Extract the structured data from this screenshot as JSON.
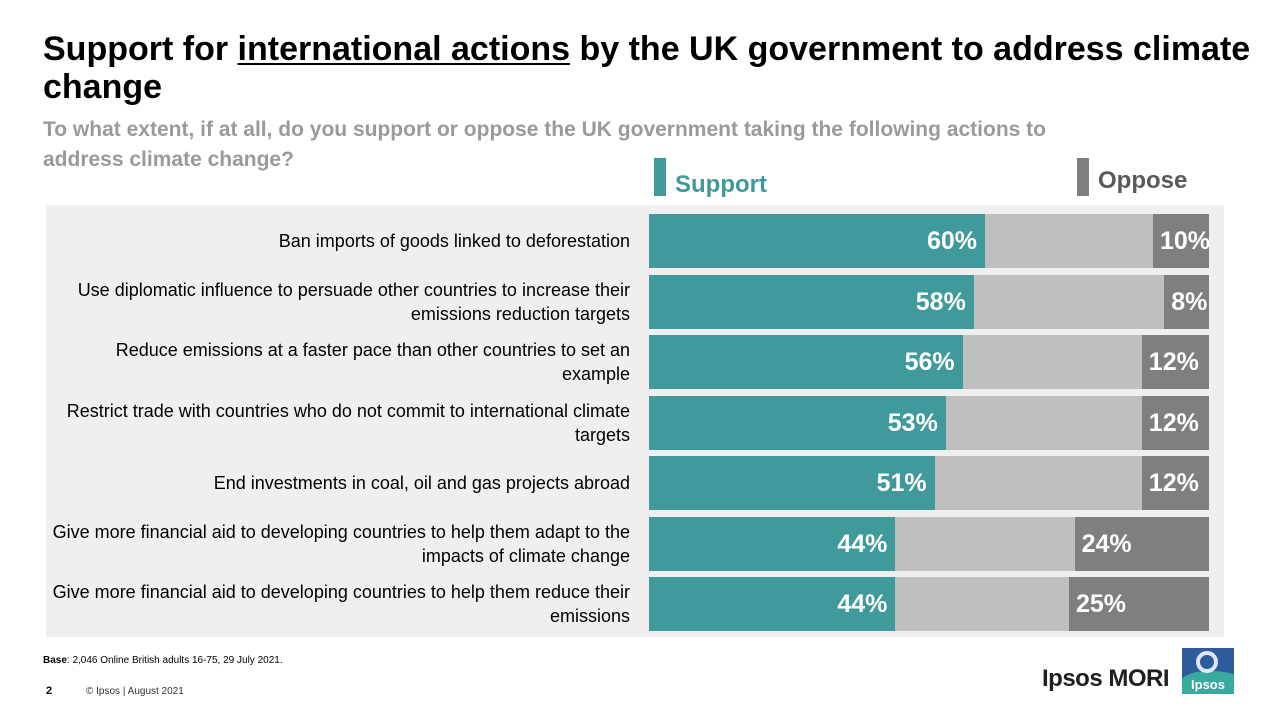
{
  "header": {
    "title_pre": "Support for ",
    "title_emph": "international actions",
    "title_post": " by the UK government to address climate change",
    "subtitle": "To what extent, if at all, do you support or oppose the UK government taking the following actions to address climate change?"
  },
  "colors": {
    "support": "#40999b",
    "neutral": "#bfbfbf",
    "oppose": "#7f7f7f",
    "subtitle": "#9a9a9a",
    "background_panel": "#efefef"
  },
  "chart_data": {
    "type": "bar",
    "orientation": "horizontal-stacked",
    "title": "",
    "legend": {
      "position": "top",
      "entries": [
        "Support",
        "Oppose"
      ]
    },
    "categories": [
      "Ban imports of goods linked to deforestation",
      "Use diplomatic influence to persuade other countries to increase their emissions reduction targets",
      "Reduce emissions at a faster pace than other countries to set an example",
      "Restrict trade with countries who do not commit to international climate targets",
      "End investments in coal, oil and gas projects abroad",
      "Give more financial aid to developing countries to help them adapt to the impacts of climate change",
      "Give more financial aid to developing countries to help them reduce their emissions"
    ],
    "series": [
      {
        "name": "Support",
        "values": [
          60,
          58,
          56,
          53,
          51,
          44,
          44
        ]
      },
      {
        "name": "Oppose",
        "values": [
          10,
          8,
          12,
          12,
          12,
          24,
          25
        ]
      }
    ],
    "unit": "%",
    "xlim": [
      0,
      100
    ],
    "grid": false
  },
  "footer": {
    "base_label": "Base",
    "base_text": ": 2,046 Online British adults 16-75, 29 July 2021.",
    "page_number": "2",
    "copyright": "© Ipsos | August 2021",
    "brand": "Ipsos MORI",
    "logo_text": "Ipsos"
  }
}
